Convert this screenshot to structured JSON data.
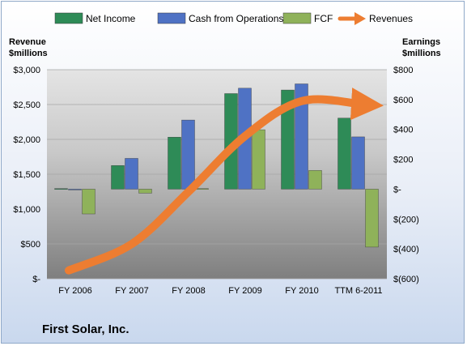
{
  "company_title": "First Solar, Inc.",
  "legend": [
    {
      "label": "Net Income",
      "color": "#2e8b57",
      "kind": "box"
    },
    {
      "label": "Cash from Operations",
      "color": "#4f72c4",
      "kind": "box"
    },
    {
      "label": "FCF",
      "color": "#8fb25a",
      "kind": "box"
    },
    {
      "label": "Revenues",
      "color": "#ed7d31",
      "kind": "arrow"
    }
  ],
  "left_axis_title": [
    "Revenue",
    "$millions"
  ],
  "right_axis_title": [
    "Earnings",
    "$millions"
  ],
  "chart_data": {
    "type": "bar",
    "categories": [
      "FY 2006",
      "FY 2007",
      "FY 2008",
      "FY 2009",
      "FY 2010",
      "TTM 6-2011"
    ],
    "left_axis": {
      "ticks": [
        "$-",
        "$500",
        "$1,000",
        "$1,500",
        "$2,000",
        "$2,500",
        "$3,000"
      ],
      "ylim": [
        0,
        3000
      ]
    },
    "right_axis": {
      "ticks": [
        "$(600)",
        "$(400)",
        "$(200)",
        "$-",
        "$200",
        "$400",
        "$600",
        "$800"
      ],
      "ylim": [
        -600,
        800
      ]
    },
    "series": [
      {
        "name": "Net Income",
        "axis": "right",
        "color": "#2e8b57",
        "values": [
          4,
          158,
          348,
          640,
          664,
          476
        ]
      },
      {
        "name": "Cash from Operations",
        "axis": "right",
        "color": "#4f72c4",
        "values": [
          -3,
          206,
          463,
          676,
          705,
          350
        ]
      },
      {
        "name": "FCF",
        "axis": "right",
        "color": "#8fb25a",
        "values": [
          -166,
          -27,
          4,
          398,
          125,
          -388
        ]
      },
      {
        "name": "Revenues",
        "axis": "left",
        "color": "#ed7d31",
        "type": "line",
        "values": [
          120,
          500,
          1250,
          2050,
          2550,
          2500
        ]
      }
    ],
    "grid": true,
    "legend_position": "top"
  }
}
